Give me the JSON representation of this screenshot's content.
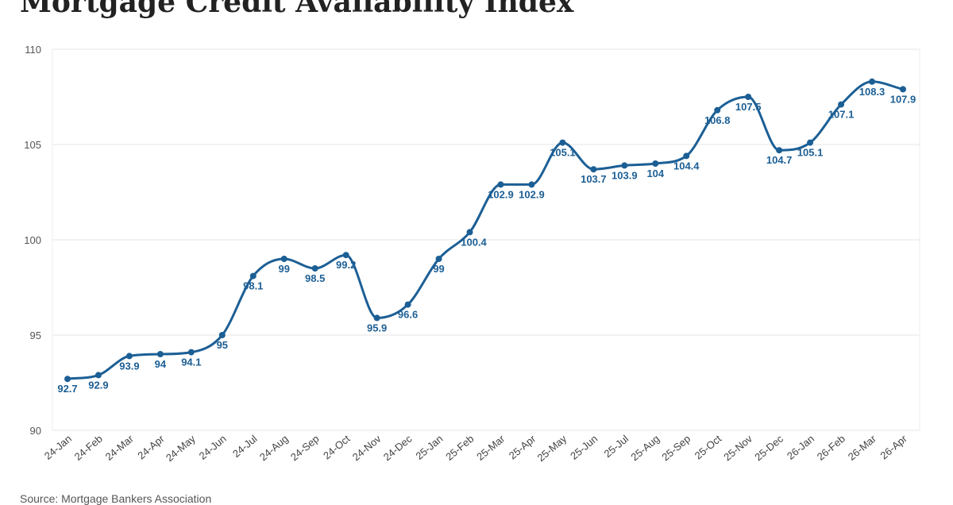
{
  "chart_data": {
    "type": "line",
    "title": "Mortgage Credit Availability Index",
    "source": "Source: Mortgage Bankers Association",
    "categories": [
      "24-Jan",
      "24-Feb",
      "24-Mar",
      "24-Apr",
      "24-May",
      "24-Jun",
      "24-Jul",
      "24-Aug",
      "24-Sep",
      "24-Oct",
      "24-Nov",
      "24-Dec",
      "25-Jan",
      "25-Feb",
      "25-Mar",
      "25-Apr",
      "25-May",
      "25-Jun",
      "25-Jul",
      "25-Aug",
      "25-Sep",
      "25-Oct",
      "25-Nov",
      "25-Dec",
      "26-Jan",
      "26-Feb",
      "26-Mar",
      "26-Apr"
    ],
    "values": [
      92.7,
      92.9,
      93.9,
      94,
      94.1,
      95,
      98.1,
      99,
      98.5,
      99.2,
      95.9,
      96.6,
      99,
      100.4,
      102.9,
      102.9,
      105.1,
      103.7,
      103.9,
      104,
      104.4,
      106.8,
      107.5,
      104.7,
      105.1,
      107.1,
      108.3,
      107.9
    ],
    "labels": [
      "92.7",
      "92.9",
      "93.9",
      "94",
      "94.1",
      "95",
      "98.1",
      "99",
      "98.5",
      "99.2",
      "95.9",
      "96.6",
      "99",
      "100.4",
      "102.9",
      "102.9",
      "105.1",
      "103.7",
      "103.9",
      "104",
      "104.4",
      "106.8",
      "107.5",
      "104.7",
      "105.1",
      "107.1",
      "108.3",
      "107.9"
    ],
    "label_position": [
      "below",
      "below",
      "below",
      "below",
      "below",
      "below",
      "below",
      "below",
      "below",
      "below",
      "below",
      "below",
      "below",
      "above",
      "below",
      "below",
      "below",
      "below",
      "below",
      "below",
      "below",
      "below",
      "below",
      "below",
      "below",
      "below",
      "below",
      "below"
    ],
    "yticks": [
      "90",
      "95",
      "100",
      "105",
      "110"
    ],
    "ylim": [
      90,
      110
    ],
    "grid": true,
    "legend": "none",
    "line_color": "#1c5f95"
  }
}
